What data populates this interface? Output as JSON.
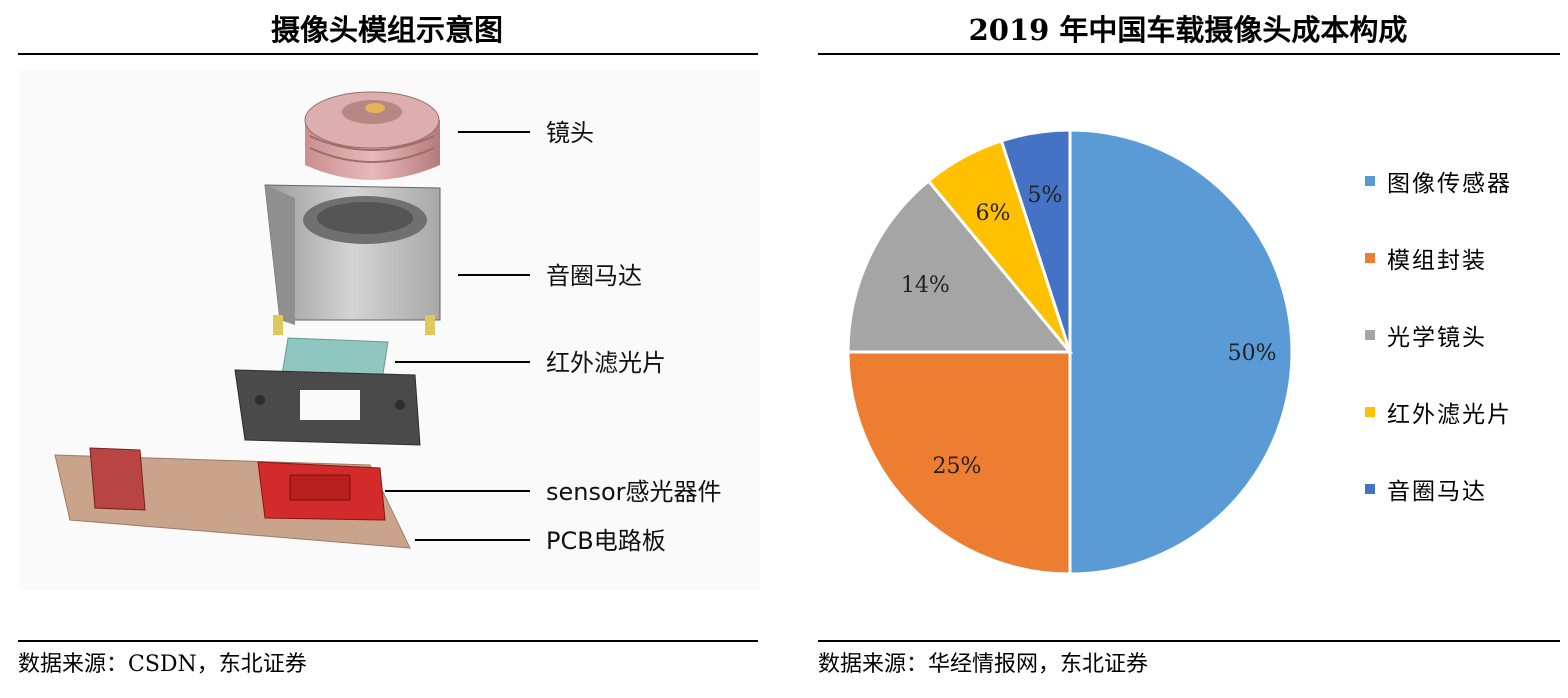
{
  "left_panel": {
    "title": "摄像头模组示意图",
    "source": "数据来源：CSDN，东北证券",
    "components": [
      {
        "label": "镜头"
      },
      {
        "label": "音圈马达"
      },
      {
        "label": "红外滤光片"
      },
      {
        "label": "sensor感光器件"
      },
      {
        "label": "PCB电路板"
      }
    ]
  },
  "right_panel": {
    "title": "2019 年中国车载摄像头成本构成",
    "source": "数据来源：华经情报网，东北证券"
  },
  "chart_data": {
    "type": "pie",
    "title": "2019 年中国车载摄像头成本构成",
    "legend_position": "right",
    "slices": [
      {
        "label": "图像传感器",
        "value": 50,
        "display": "50%",
        "color": "#5B9BD5"
      },
      {
        "label": "模组封装",
        "value": 25,
        "display": "25%",
        "color": "#ED7D31"
      },
      {
        "label": "光学镜头",
        "value": 14,
        "display": "14%",
        "color": "#A5A5A5"
      },
      {
        "label": "红外滤光片",
        "value": 6,
        "display": "6%",
        "color": "#FFC000"
      },
      {
        "label": "音圈马达",
        "value": 5,
        "display": "5%",
        "color": "#4472C4"
      }
    ]
  }
}
